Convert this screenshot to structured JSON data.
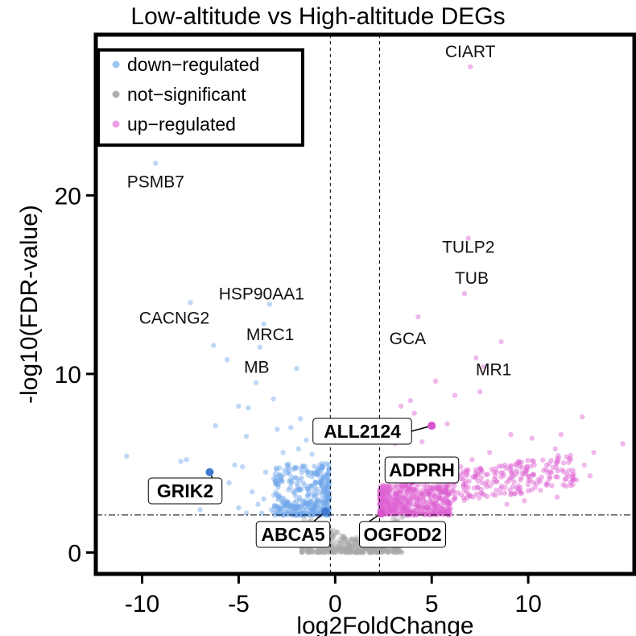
{
  "chart_data": {
    "type": "scatter",
    "title": "Low-altitude vs High-altitude DEGs",
    "xlabel": "log2FoldChange",
    "ylabel": "-log10(FDR-value)",
    "xlim": [
      -12.4,
      15.5
    ],
    "ylim": [
      -1.2,
      29
    ],
    "x_ticks": [
      "-10",
      "-5",
      "0",
      "5",
      "10"
    ],
    "x_tick_values": [
      -10,
      -5,
      0,
      5,
      10
    ],
    "y_ticks": [
      "0",
      "10",
      "20"
    ],
    "y_tick_values": [
      0,
      10,
      20
    ],
    "thresholds": {
      "log2fc": [
        -0.25,
        2.3
      ],
      "fdr_line": 2.1
    },
    "legend": {
      "placement": "top-left",
      "entries": [
        {
          "label": "down−regulated",
          "color": "#9ec5f0"
        },
        {
          "label": "not−significant",
          "color": "#b0b0b0"
        },
        {
          "label": "up−regulated",
          "color": "#ec9fe2"
        }
      ]
    },
    "colors": {
      "down": "#6ea6ea",
      "ns": "#a8a8a8",
      "up": "#dd62d2",
      "highlight_down": "#3f78cf",
      "highlight_up": "#d953cc"
    },
    "series": [
      {
        "name": "down−regulated",
        "points": [
          [
            -9.3,
            21.8
          ],
          [
            -7.5,
            14.0
          ],
          [
            -3.4,
            13.9
          ],
          [
            -3.7,
            12.8
          ],
          [
            -6.3,
            11.6
          ],
          [
            -3.9,
            11.5
          ],
          [
            -5.6,
            10.8
          ],
          [
            -2.0,
            10.3
          ],
          [
            -4.1,
            9.5
          ],
          [
            -3.2,
            8.6
          ],
          [
            -5.0,
            8.2
          ],
          [
            -4.5,
            8.1
          ],
          [
            -1.8,
            7.5
          ],
          [
            -6.2,
            7.1
          ],
          [
            -2.3,
            7.0
          ],
          [
            -3.0,
            6.9
          ],
          [
            -4.6,
            6.5
          ],
          [
            -1.5,
            6.3
          ],
          [
            -10.8,
            5.4
          ],
          [
            -8.0,
            5.1
          ],
          [
            -7.7,
            5.2
          ],
          [
            -5.2,
            4.9
          ],
          [
            -4.8,
            4.8
          ],
          [
            -3.6,
            4.5
          ],
          [
            -2.7,
            5.6
          ],
          [
            -1.9,
            5.8
          ],
          [
            -1.2,
            5.5
          ],
          [
            -0.8,
            4.9
          ],
          [
            -3.1,
            4.0
          ],
          [
            -2.2,
            4.2
          ],
          [
            -5.5,
            3.9
          ],
          [
            -6.8,
            3.5
          ],
          [
            -4.3,
            3.4
          ],
          [
            -3.7,
            3.0
          ],
          [
            -2.9,
            3.2
          ],
          [
            -2.5,
            2.8
          ],
          [
            -4.0,
            2.7
          ],
          [
            -5.0,
            2.5
          ],
          [
            -3.3,
            2.4
          ],
          [
            -1.5,
            4.6
          ],
          [
            -1.0,
            3.9
          ],
          [
            -0.6,
            3.4
          ],
          [
            -1.8,
            3.5
          ],
          [
            -2.0,
            2.6
          ],
          [
            -1.3,
            2.8
          ],
          [
            -0.7,
            2.6
          ],
          [
            -0.5,
            2.4
          ],
          [
            -2.6,
            2.3
          ],
          [
            -3.8,
            2.2
          ],
          [
            -6.2,
            2.9
          ],
          [
            -7.0,
            2.4
          ],
          [
            -4.6,
            2.2
          ]
        ]
      },
      {
        "name": "not−significant",
        "points": []
      },
      {
        "name": "up−regulated",
        "points": [
          [
            7.0,
            27.2
          ],
          [
            6.9,
            17.6
          ],
          [
            6.7,
            14.5
          ],
          [
            4.3,
            13.2
          ],
          [
            8.6,
            11.8
          ],
          [
            7.3,
            10.9
          ],
          [
            7.7,
            10.4
          ],
          [
            5.2,
            9.6
          ],
          [
            6.2,
            8.8
          ],
          [
            7.5,
            9.0
          ],
          [
            3.9,
            8.5
          ],
          [
            3.4,
            8.2
          ],
          [
            4.1,
            7.8
          ],
          [
            2.7,
            7.4
          ],
          [
            5.8,
            7.2
          ],
          [
            9.1,
            6.6
          ],
          [
            10.2,
            6.4
          ],
          [
            11.7,
            6.6
          ],
          [
            12.8,
            7.6
          ],
          [
            14.9,
            6.1
          ],
          [
            13.4,
            5.6
          ],
          [
            12.2,
            5.2
          ],
          [
            11.4,
            5.8
          ],
          [
            10.8,
            4.6
          ],
          [
            9.5,
            5.1
          ],
          [
            8.8,
            4.9
          ],
          [
            8.0,
            5.6
          ],
          [
            7.1,
            5.2
          ],
          [
            6.5,
            4.8
          ],
          [
            5.9,
            4.3
          ],
          [
            3.1,
            6.1
          ],
          [
            3.7,
            5.0
          ],
          [
            4.5,
            6.2
          ],
          [
            12.9,
            4.9
          ],
          [
            13.2,
            4.3
          ],
          [
            11.0,
            3.9
          ],
          [
            10.0,
            3.8
          ],
          [
            9.4,
            3.6
          ],
          [
            8.3,
            3.2
          ],
          [
            7.6,
            3.9
          ],
          [
            6.8,
            3.4
          ],
          [
            6.2,
            3.1
          ],
          [
            5.4,
            3.6
          ],
          [
            4.8,
            3.3
          ],
          [
            4.2,
            2.9
          ],
          [
            3.8,
            3.6
          ],
          [
            3.1,
            2.7
          ],
          [
            2.7,
            3.3
          ],
          [
            2.5,
            2.6
          ],
          [
            9.8,
            2.9
          ],
          [
            8.9,
            2.7
          ],
          [
            11.5,
            3.1
          ]
        ]
      }
    ],
    "density_regions": [
      {
        "group": "ns",
        "xrange": [
          -1.8,
          3.6
        ],
        "yrange": [
          0.0,
          2.2
        ],
        "count": 520
      },
      {
        "group": "down",
        "xrange": [
          -3.2,
          -0.3
        ],
        "yrange": [
          2.1,
          5.0
        ],
        "count": 380
      },
      {
        "group": "up",
        "xrange": [
          2.3,
          6.0
        ],
        "yrange": [
          2.1,
          3.8
        ],
        "count": 460
      },
      {
        "group": "up",
        "xrange": [
          5.5,
          12.5
        ],
        "yrange": [
          2.6,
          5.4
        ],
        "count": 220
      }
    ],
    "text_labels": [
      {
        "text": "CIART",
        "x": 7.0,
        "y": 27.2
      },
      {
        "text": "PSMB7",
        "x": -9.3,
        "y": 21.8
      },
      {
        "text": "TULP2",
        "x": 6.9,
        "y": 17.6
      },
      {
        "text": "TUB",
        "x": 6.7,
        "y": 14.5
      },
      {
        "text": "HSP90AA1",
        "x": -3.4,
        "y": 13.9
      },
      {
        "text": "CACNG2",
        "x": -7.5,
        "y": 14.0
      },
      {
        "text": "GCA",
        "x": 4.3,
        "y": 13.2
      },
      {
        "text": "MRC1",
        "x": -3.7,
        "y": 12.8
      },
      {
        "text": "MR1",
        "x": 7.7,
        "y": 11.2
      },
      {
        "text": "MB",
        "x": -3.9,
        "y": 11.5
      }
    ],
    "boxed_labels": [
      {
        "text": "ALL2124",
        "x": 5.0,
        "y": 7.1,
        "group": "up"
      },
      {
        "text": "ADPRH",
        "x": 4.0,
        "y": 4.0,
        "group": "up"
      },
      {
        "text": "GRIK2",
        "x": -6.5,
        "y": 4.5,
        "group": "down"
      },
      {
        "text": "ABCA5",
        "x": -0.5,
        "y": 2.3,
        "group": "down"
      },
      {
        "text": "OGFOD2",
        "x": 2.4,
        "y": 2.2,
        "group": "up"
      }
    ]
  }
}
